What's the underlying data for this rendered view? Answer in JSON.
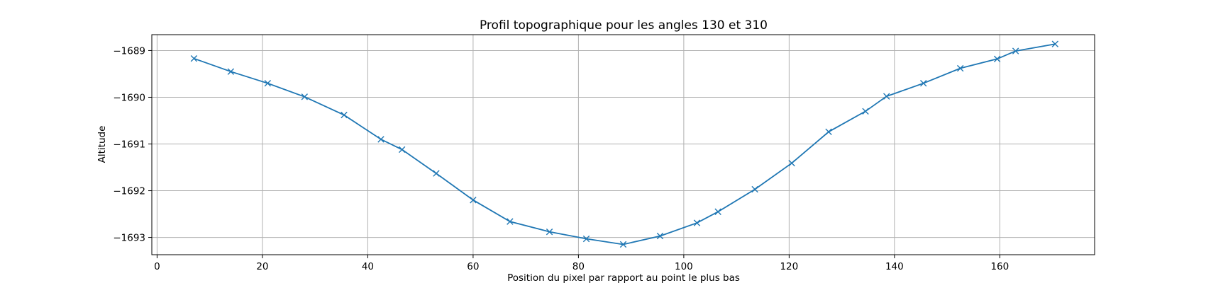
{
  "colors": {
    "series": "#1f77b4",
    "grid": "#b0b0b0",
    "axes": "#000000"
  },
  "chart_data": {
    "type": "line",
    "title": "Profil topographique pour les angles 130 et 310",
    "xlabel": "Position du pixel par rapport au point le plus bas",
    "ylabel": "Altitude",
    "xlim": [
      -1,
      178
    ],
    "ylim": [
      -1693.37,
      -1688.66
    ],
    "xticks": [
      0,
      20,
      40,
      60,
      80,
      100,
      120,
      140,
      160
    ],
    "yticks": [
      -1689,
      -1690,
      -1691,
      -1692,
      -1693
    ],
    "xtick_labels": [
      "0",
      "20",
      "40",
      "60",
      "80",
      "100",
      "120",
      "140",
      "160"
    ],
    "ytick_labels": [
      "−1689",
      "−1690",
      "−1691",
      "−1692",
      "−1693"
    ],
    "grid": true,
    "marker": "x",
    "series": [
      {
        "x": [
          7,
          14,
          21,
          28,
          35.5,
          42.5,
          46.5,
          53,
          60,
          67,
          74.5,
          81.5,
          88.5,
          95.5,
          102.5,
          106.5,
          113.5,
          120.5,
          127.5,
          134.5,
          138.5,
          145.5,
          152.5,
          159.5,
          163,
          170.5
        ],
        "y": [
          -1689.17,
          -1689.45,
          -1689.7,
          -1689.99,
          -1690.38,
          -1690.9,
          -1691.12,
          -1691.63,
          -1692.2,
          -1692.66,
          -1692.88,
          -1693.03,
          -1693.15,
          -1692.97,
          -1692.69,
          -1692.45,
          -1691.97,
          -1691.41,
          -1690.74,
          -1690.3,
          -1689.98,
          -1689.7,
          -1689.38,
          -1689.18,
          -1689.01,
          -1688.86
        ]
      }
    ]
  }
}
